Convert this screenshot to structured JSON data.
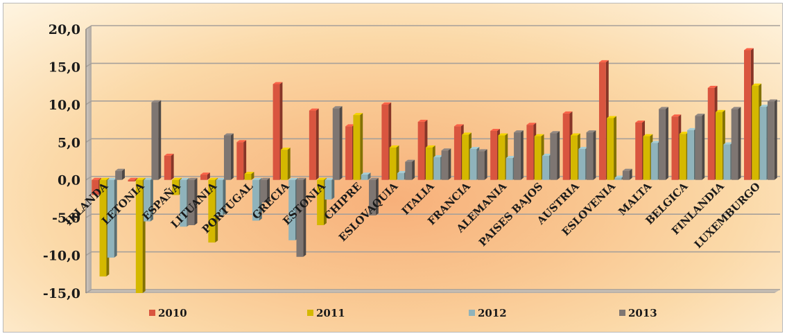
{
  "chart_data": {
    "type": "bar",
    "title": "",
    "xlabel": "",
    "ylabel": "",
    "ylim": [
      -15,
      20
    ],
    "yticks": [
      "20,0",
      "15,0",
      "10,0",
      "5,0",
      "0,0",
      "-5,0",
      "-10,0",
      "-15,0"
    ],
    "ytick_values": [
      20,
      15,
      10,
      5,
      0,
      -5,
      -10,
      -15
    ],
    "grid": true,
    "legend_position": "bottom",
    "categories": [
      "IRLANDA",
      "LETONIA",
      "ESPAÑA",
      "LITUANIA",
      "PORTUGAL",
      "GRECIA",
      "ESTONIA",
      "CHIPRE",
      "ESLOVAQUIA",
      "ITALIA",
      "FRANCIA",
      "ALEMANIA",
      "PAISES BAJOS",
      "AUSTRIA",
      "ESLOVENIA",
      "MALTA",
      "BELGICA",
      "FINLANDIA",
      "LUXEMBURGO"
    ],
    "series": [
      {
        "name": "2010",
        "color": "#d9553f",
        "values": [
          -2.0,
          -0.2,
          3.2,
          0.7,
          5.0,
          12.7,
          9.2,
          7.1,
          10.0,
          7.7,
          7.1,
          6.5,
          7.3,
          8.8,
          15.6,
          7.6,
          8.4,
          12.2,
          17.2
        ]
      },
      {
        "name": "2011",
        "color": "#d4b800",
        "values": [
          -12.8,
          -15.0,
          -2.0,
          -8.3,
          0.8,
          4.0,
          -6.0,
          8.6,
          4.3,
          4.3,
          6.0,
          5.9,
          5.8,
          5.9,
          8.2,
          5.8,
          6.1,
          9.0,
          12.5
        ]
      },
      {
        "name": "2012",
        "color": "#8fb3bb",
        "values": [
          -10.3,
          -5.5,
          -6.2,
          -4.7,
          -5.4,
          -8.0,
          -2.6,
          0.7,
          0.9,
          3.0,
          4.1,
          2.9,
          3.2,
          4.1,
          0.3,
          4.9,
          6.6,
          4.7,
          9.7
        ]
      },
      {
        "name": "2013",
        "color": "#7e7672",
        "values": [
          1.2,
          10.3,
          -6.0,
          5.9,
          -3.0,
          -10.2,
          9.5,
          -4.7,
          2.4,
          3.9,
          3.8,
          6.3,
          6.2,
          6.3,
          1.2,
          9.4,
          8.5,
          9.4,
          10.4
        ]
      }
    ]
  }
}
